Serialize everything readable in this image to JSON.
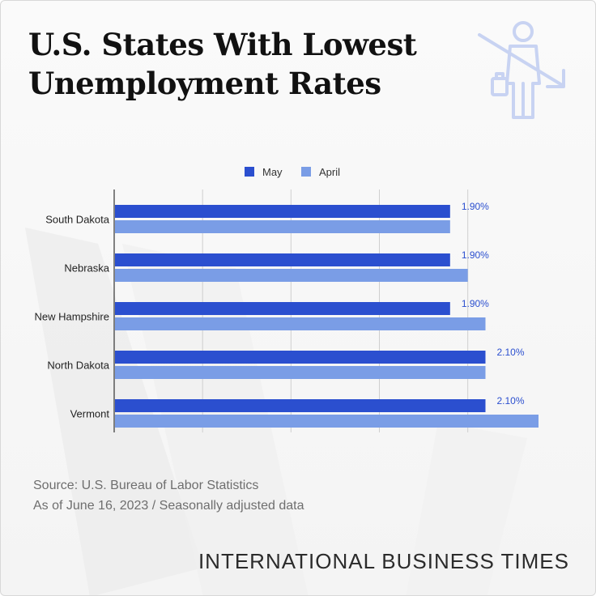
{
  "page": {
    "title_lines": [
      "U.S. States With Lowest",
      "Unemployment Rates"
    ],
    "source": "Source:  U.S. Bureau of Labor Statistics",
    "note": "As of June 16, 2023 / Seasonally adjusted data",
    "brand": "INTERNATIONAL BUSINESS TIMES",
    "header_icon": "unemployed-person-down-arrow-icon"
  },
  "chart_data": {
    "type": "bar",
    "orientation": "horizontal",
    "categories": [
      "South Dakota",
      "Nebraska",
      "New Hampshire",
      "North Dakota",
      "Vermont"
    ],
    "series": [
      {
        "name": "May",
        "color": "#2b4fcf",
        "values": [
          1.9,
          1.9,
          1.9,
          2.1,
          2.1
        ],
        "data_labels": [
          "1.90%",
          "1.90%",
          "1.90%",
          "2.10%",
          "2.10%"
        ]
      },
      {
        "name": "April",
        "color": "#7a9de6",
        "values": [
          1.9,
          2.0,
          2.1,
          2.1,
          2.4
        ]
      }
    ],
    "xlim": [
      0,
      2.4
    ],
    "grid": true,
    "legend": "top-center",
    "label_color": "#2b4fcf"
  }
}
